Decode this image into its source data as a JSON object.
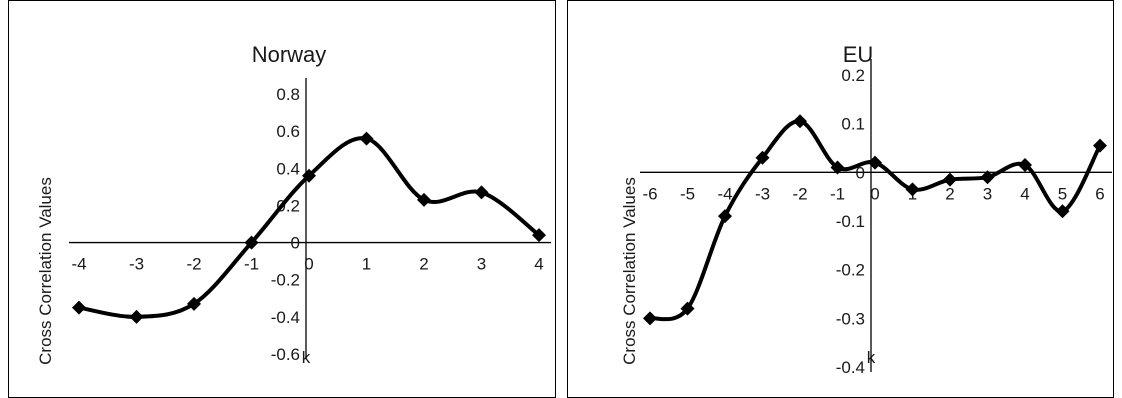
{
  "chart_data": [
    {
      "type": "line",
      "title": "Norway",
      "xlabel": "k",
      "ylabel": "Cross Correlation Values",
      "x": [
        -4,
        -3,
        -2,
        -1,
        0,
        1,
        2,
        3,
        4
      ],
      "series": [
        {
          "values": [
            -0.35,
            -0.4,
            -0.33,
            0.0,
            0.36,
            0.56,
            0.23,
            0.27,
            0.04
          ]
        }
      ],
      "xticks": [
        "-4",
        "-3",
        "-2",
        "-1",
        "0",
        "1",
        "2",
        "3",
        "4"
      ],
      "yticks": [
        "0.8",
        "0.6",
        "0.4",
        "0.2",
        "0",
        "-0.2",
        "-0.4",
        "-0.6"
      ],
      "ylim": [
        -0.7,
        0.8
      ],
      "xlim": [
        -4,
        4
      ],
      "grid": false,
      "line_color": "#000000",
      "marker": "diamond"
    },
    {
      "type": "line",
      "title": "EU",
      "xlabel": "k",
      "ylabel": "Cross Correlation Values",
      "x": [
        -6,
        -5,
        -4,
        -3,
        -2,
        -1,
        0,
        1,
        2,
        3,
        4,
        5,
        6
      ],
      "series": [
        {
          "values": [
            -0.3,
            -0.28,
            -0.09,
            0.03,
            0.105,
            0.01,
            0.02,
            -0.035,
            -0.015,
            -0.01,
            0.015,
            -0.08,
            0.055
          ]
        }
      ],
      "xticks": [
        "-6",
        "-5",
        "-4",
        "-3",
        "-2",
        "-1",
        "0",
        "1",
        "2",
        "3",
        "4",
        "5",
        "6"
      ],
      "yticks": [
        "0.2",
        "0.1",
        "0",
        "-0.1",
        "-0.2",
        "-0.3",
        "-0.4"
      ],
      "ylim": [
        -0.45,
        0.2
      ],
      "xlim": [
        -6,
        6
      ],
      "grid": false,
      "line_color": "#000000",
      "marker": "diamond"
    }
  ]
}
